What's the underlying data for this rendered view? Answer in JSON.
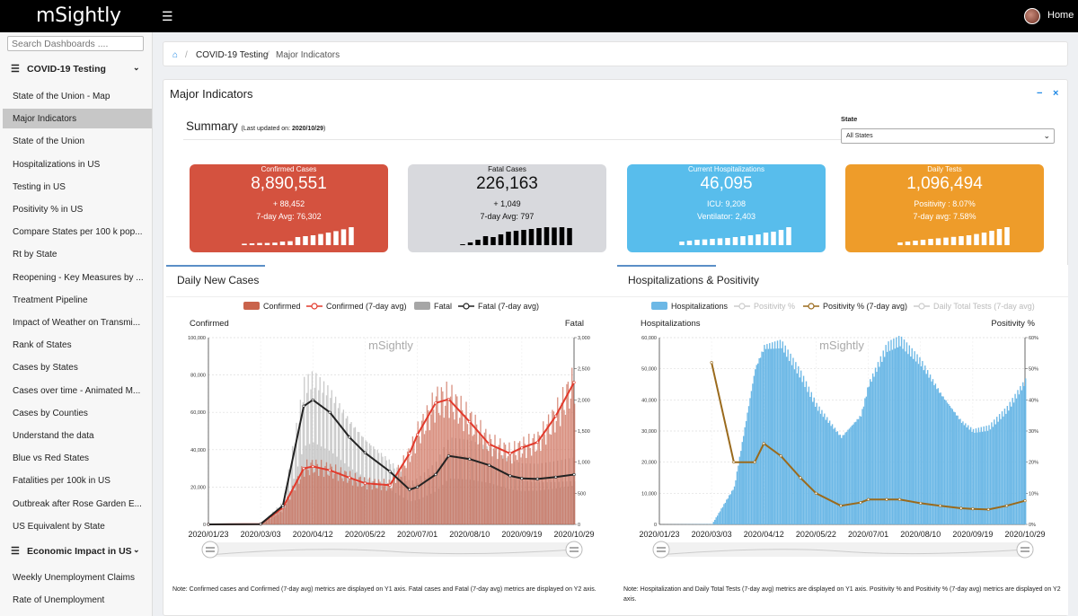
{
  "app": {
    "logo": "mSightly",
    "home_label": "Home"
  },
  "sidebar": {
    "search_placeholder": "Search Dashboards ....",
    "sections": [
      {
        "title": "COVID-19 Testing",
        "items": [
          {
            "label": "State of the Union - Map"
          },
          {
            "label": "Major Indicators",
            "active": true
          },
          {
            "label": "State of the Union"
          },
          {
            "label": "Hospitalizations in US"
          },
          {
            "label": "Testing in US"
          },
          {
            "label": "Positivity % in US"
          },
          {
            "label": "Compare States per 100 k pop..."
          },
          {
            "label": "Rt by State"
          },
          {
            "label": "Reopening - Key Measures by ..."
          },
          {
            "label": "Treatment Pipeline"
          },
          {
            "label": "Impact of Weather on Transmi..."
          },
          {
            "label": "Rank of States"
          },
          {
            "label": "Cases by States"
          },
          {
            "label": "Cases over time - Animated M..."
          },
          {
            "label": "Cases by Counties"
          },
          {
            "label": "Understand the data"
          },
          {
            "label": "Blue vs Red States"
          },
          {
            "label": "Fatalities per 100k in US"
          },
          {
            "label": "Outbreak after Rose Garden E..."
          },
          {
            "label": "US Equivalent by State"
          }
        ]
      },
      {
        "title": "Economic Impact in US",
        "items": [
          {
            "label": "Weekly Unemployment Claims"
          },
          {
            "label": "Rate of Unemployment"
          }
        ]
      }
    ]
  },
  "breadcrumb": {
    "home_icon": "home-icon",
    "level1": "COVID-19 Testing",
    "level2": "Major Indicators"
  },
  "panel": {
    "title": "Major Indicators",
    "minimize": "−",
    "close": "×",
    "summary_title": "Summary",
    "summary_updated_prefix": "(Last updated on: ",
    "summary_updated_date": "2020/10/29",
    "summary_updated_suffix": ")",
    "state_label": "State",
    "state_value": "All States"
  },
  "cards": [
    {
      "title": "Confirmed Cases",
      "value": "8,890,551",
      "line1": "+ 88,452",
      "line2": "7-day Avg: 76,302",
      "color": "#d4523f",
      "spark": [
        0.08,
        0.1,
        0.12,
        0.12,
        0.14,
        0.2,
        0.22,
        0.45,
        0.5,
        0.55,
        0.62,
        0.7,
        0.78,
        0.88,
        1.0
      ]
    },
    {
      "title": "Fatal Cases",
      "value": "226,163",
      "line1": "+ 1,049",
      "line2": "7-day Avg: 797",
      "color": "#d8d9dd",
      "spark": [
        0.05,
        0.15,
        0.3,
        0.5,
        0.45,
        0.6,
        0.75,
        0.8,
        0.85,
        0.9,
        0.95,
        1.0,
        0.98,
        1.0,
        0.95
      ]
    },
    {
      "title": "Current Hospitalizations",
      "value": "46,095",
      "line1": "ICU: 9,208",
      "line2": "Ventilator: 2,403",
      "color": "#58bdec",
      "spark": [
        0.2,
        0.25,
        0.3,
        0.32,
        0.35,
        0.38,
        0.4,
        0.45,
        0.5,
        0.55,
        0.6,
        0.7,
        0.75,
        0.85,
        1.0
      ]
    },
    {
      "title": "Daily Tests",
      "value": "1,096,494",
      "line1": "Positivity : 8.07%",
      "line2": "7-day avg: 7.58%",
      "color": "#ee9c2a",
      "spark": [
        0.15,
        0.2,
        0.25,
        0.3,
        0.35,
        0.38,
        0.42,
        0.46,
        0.5,
        0.55,
        0.62,
        0.7,
        0.8,
        0.9,
        1.0
      ]
    }
  ],
  "chart_data": [
    {
      "type": "bar",
      "title": "Daily New Cases",
      "watermark": "mSightly",
      "ylabel": "Confirmed",
      "y2label": "Fatal",
      "ylim": [
        0,
        100000
      ],
      "y2lim": [
        0,
        3000
      ],
      "yticks": [
        "0",
        "20,000",
        "40,000",
        "60,000",
        "80,000",
        "100,000"
      ],
      "y2ticks": [
        "0",
        "500",
        "1,000",
        "1,500",
        "2,000",
        "2,500",
        "3,000"
      ],
      "xticks": [
        "2020/01/23",
        "2020/03/03",
        "2020/04/12",
        "2020/05/22",
        "2020/07/01",
        "2020/08/10",
        "2020/09/19",
        "2020/10/29"
      ],
      "legend": [
        "Confirmed",
        "Confirmed (7-day avg)",
        "Fatal",
        "Fatal (7-day avg)"
      ],
      "colors": {
        "confirmed": "#c9634b",
        "confirmed_avg": "#e23a2c",
        "fatal": "#a6a6a6",
        "fatal_avg": "#222222"
      },
      "x": [
        "2020/01/23",
        "2020/03/03",
        "2020/03/20",
        "2020/04/05",
        "2020/04/12",
        "2020/04/25",
        "2020/05/10",
        "2020/05/22",
        "2020/06/10",
        "2020/06/25",
        "2020/07/01",
        "2020/07/15",
        "2020/07/25",
        "2020/08/10",
        "2020/08/25",
        "2020/09/10",
        "2020/09/19",
        "2020/10/01",
        "2020/10/15",
        "2020/10/29"
      ],
      "series": [
        {
          "name": "Confirmed (7-day avg)",
          "axis": "y1",
          "values": [
            0,
            200,
            9000,
            30000,
            31000,
            29000,
            25000,
            22000,
            21000,
            38000,
            48000,
            65000,
            67000,
            55000,
            43000,
            38000,
            41000,
            44000,
            58000,
            76000
          ]
        },
        {
          "name": "Fatal (7-day avg)",
          "axis": "y2",
          "values": [
            0,
            5,
            300,
            1900,
            2000,
            1800,
            1400,
            1150,
            850,
            560,
            600,
            800,
            1100,
            1050,
            950,
            780,
            740,
            730,
            760,
            800
          ]
        }
      ]
    },
    {
      "type": "bar",
      "title": "Hospitalizations & Positivity",
      "watermark": "mSightly",
      "ylabel": "Hospitalizations",
      "y2label": "Positivity %",
      "ylim": [
        0,
        60000
      ],
      "y2lim": [
        0,
        60
      ],
      "yticks": [
        "0",
        "10,000",
        "20,000",
        "30,000",
        "40,000",
        "50,000",
        "60,000"
      ],
      "y2ticks": [
        "0%",
        "10%",
        "20%",
        "30%",
        "40%",
        "50%",
        "60%"
      ],
      "xticks": [
        "2020/01/23",
        "2020/03/03",
        "2020/04/12",
        "2020/05/22",
        "2020/07/01",
        "2020/08/10",
        "2020/09/19",
        "2020/10/29"
      ],
      "legend": [
        "Hospitalizations",
        "Positivity %",
        "Positivity % (7-day avg)",
        "Daily Total Tests (7-day avg)"
      ],
      "colors": {
        "hosp": "#6cb8e6",
        "pos": "#cccccc",
        "pos_avg": "#9a6a1c",
        "tests": "#cccccc"
      },
      "x": [
        "2020/01/23",
        "2020/03/03",
        "2020/03/20",
        "2020/04/05",
        "2020/04/12",
        "2020/04/25",
        "2020/05/10",
        "2020/05/22",
        "2020/06/10",
        "2020/06/25",
        "2020/07/01",
        "2020/07/15",
        "2020/07/25",
        "2020/08/10",
        "2020/08/25",
        "2020/09/10",
        "2020/09/19",
        "2020/10/01",
        "2020/10/15",
        "2020/10/29"
      ],
      "series": [
        {
          "name": "Hospitalizations",
          "axis": "y1",
          "values": [
            0,
            100,
            12000,
            50000,
            57000,
            58000,
            48000,
            38000,
            28000,
            35000,
            45000,
            57000,
            59000,
            52000,
            42000,
            33000,
            30000,
            31000,
            37000,
            46000
          ]
        },
        {
          "name": "Positivity % (7-day avg)",
          "axis": "y2",
          "values": [
            null,
            52,
            20,
            20,
            26,
            22,
            15,
            10,
            6,
            7,
            8,
            8,
            8,
            6.8,
            6,
            5.2,
            5,
            4.8,
            6,
            7.6
          ]
        }
      ]
    }
  ],
  "notes": {
    "left": "Note: Confirmed cases and Confirmed (7-day avg) metrics are displayed on Y1 axis. Fatal cases and Fatal (7-day avg) metrics are displayed on Y2 axis.",
    "right": "Note: Hospitalization and Daily Total Tests (7-day avg) metrics are displayed on Y1 axis. Positivity % and Positivity % (7-day avg) metrics are displayed on Y2 axis."
  }
}
